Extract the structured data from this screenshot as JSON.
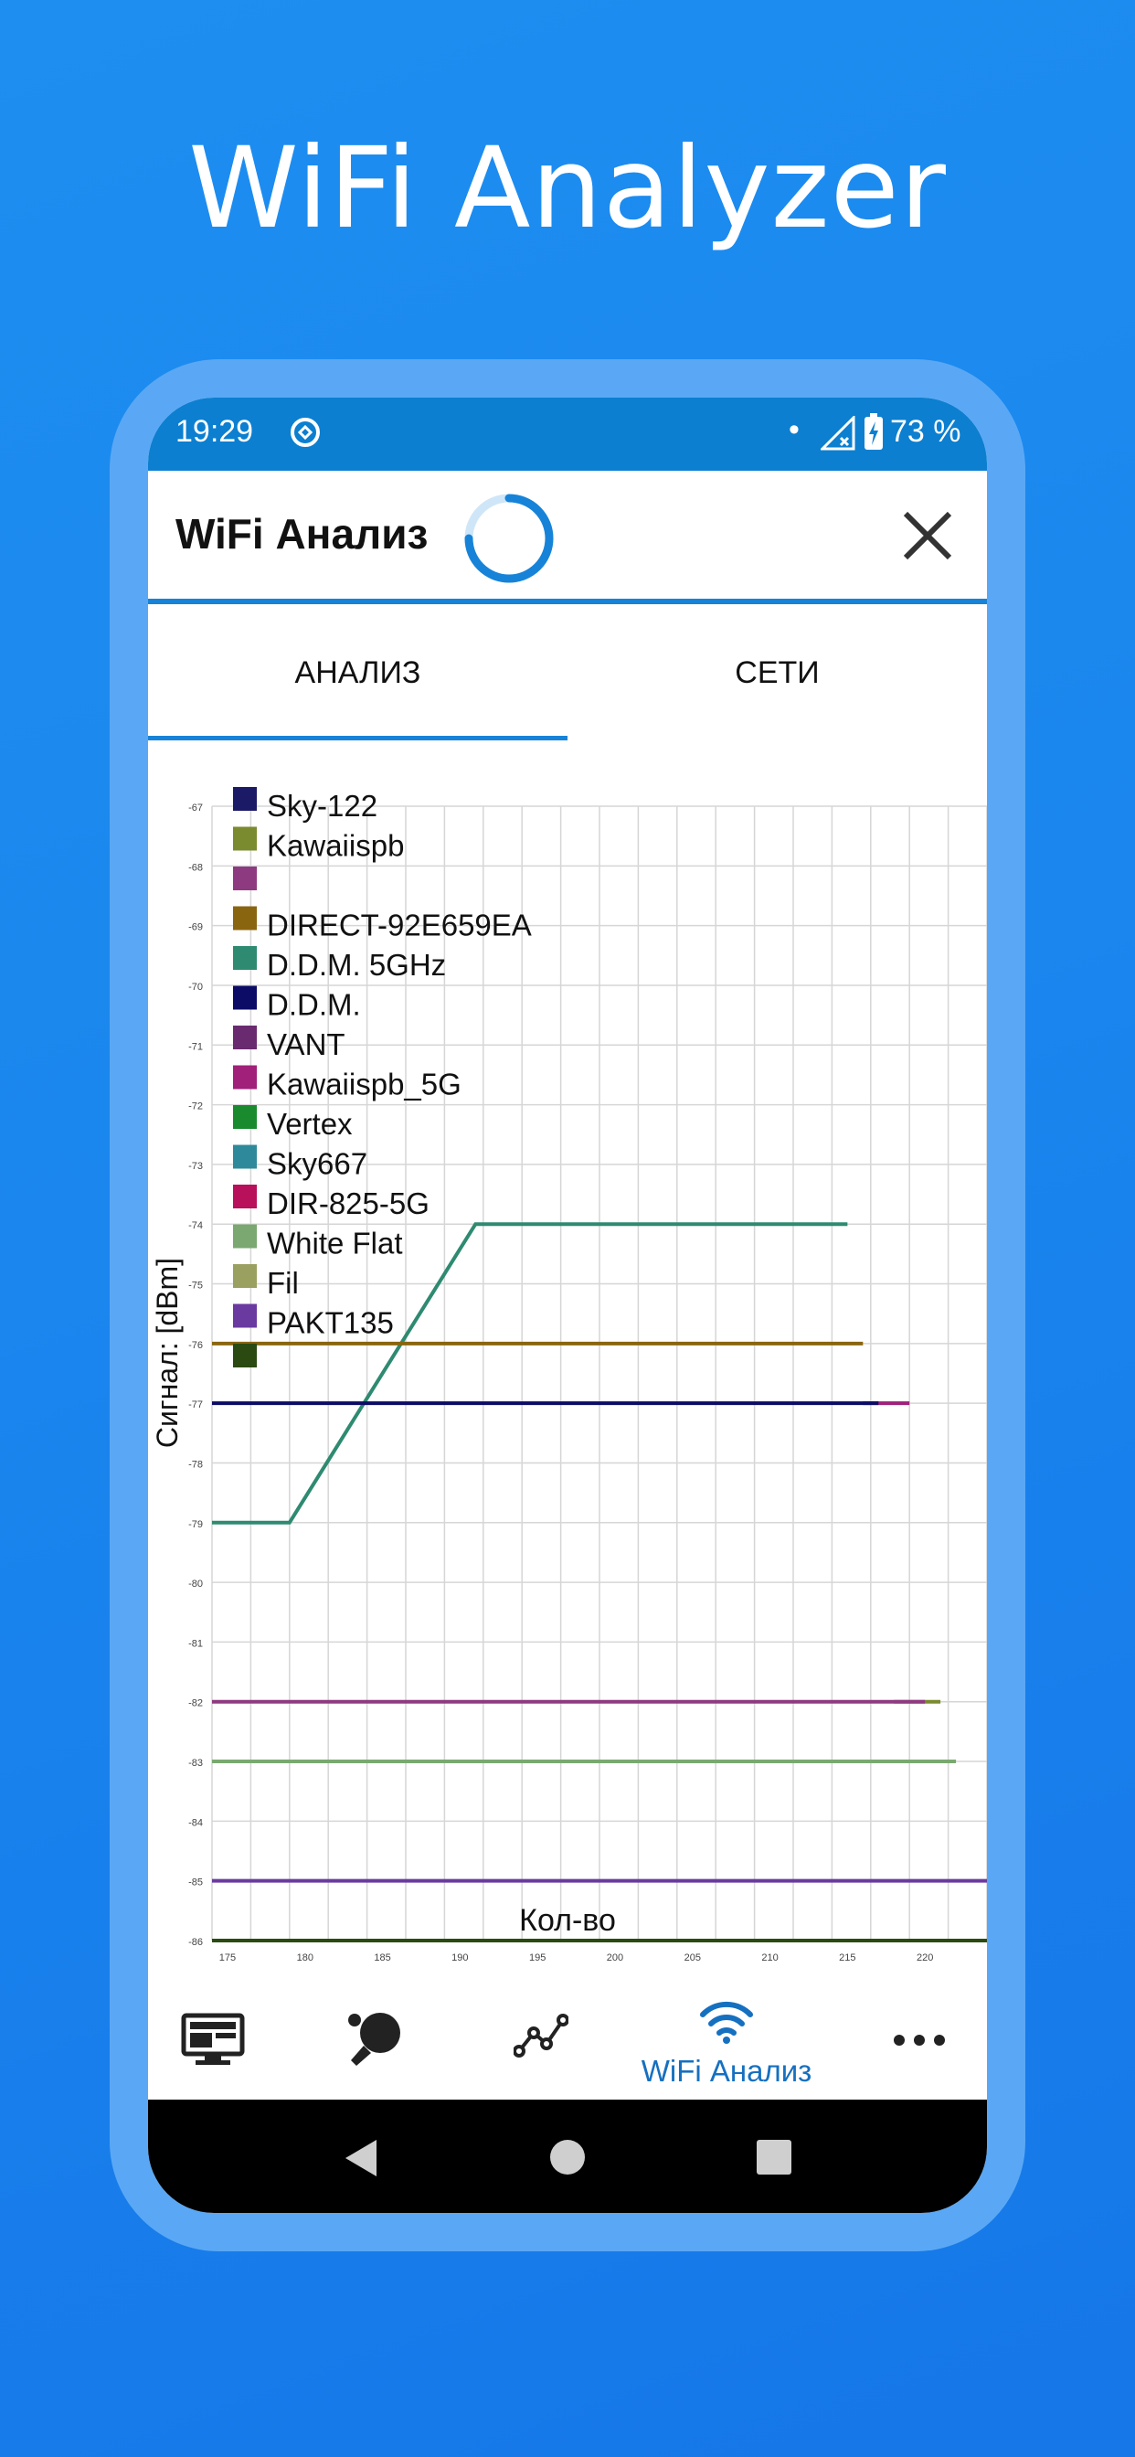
{
  "headline": "WiFi Analyzer",
  "status_bar": {
    "time": "19:29",
    "dot": "•",
    "battery_percent": "73 %",
    "sync_icon": "sync-icon",
    "signal_icon": "signal-off-icon",
    "battery_icon": "battery-charging-icon"
  },
  "app_bar": {
    "title": "WiFi Анализ",
    "spinner_icon": "loading-spinner-icon",
    "close_icon": "close-icon"
  },
  "tabs": [
    {
      "label": "АНАЛИЗ",
      "active": true
    },
    {
      "label": "СЕТИ",
      "active": false
    }
  ],
  "bottom_nav": [
    {
      "icon": "monitor-icon",
      "label": ""
    },
    {
      "icon": "ping-pong-icon",
      "label": ""
    },
    {
      "icon": "graph-icon",
      "label": ""
    },
    {
      "icon": "wifi-icon",
      "label": "WiFi Анализ",
      "active": true
    },
    {
      "icon": "more-icon",
      "label": ""
    }
  ],
  "system_nav": {
    "back": "back-icon",
    "home": "home-icon",
    "recents": "recents-icon"
  },
  "colors": {
    "background": "#1a86ee",
    "frame": "#5aa8f5",
    "accent": "#1683d8",
    "status_bar": "#0c7fd0"
  },
  "chart_data": {
    "type": "line",
    "xlabel": "Кол-во",
    "ylabel": "Сигнал: [dBm]",
    "xlim": [
      174,
      224
    ],
    "ylim": [
      -86,
      -67
    ],
    "x_ticks": [
      175,
      180,
      185,
      190,
      195,
      200,
      205,
      210,
      215,
      220
    ],
    "y_ticks": [
      -67,
      -68,
      -69,
      -70,
      -71,
      -72,
      -73,
      -74,
      -75,
      -76,
      -77,
      -78,
      -79,
      -80,
      -81,
      -82,
      -83,
      -84,
      -85,
      -86
    ],
    "grid": true,
    "legend_position": "top-left",
    "legend": [
      {
        "name": "Sky-122",
        "color": "#1a1a66"
      },
      {
        "name": "Kawaiispb",
        "color": "#7a8a2e"
      },
      {
        "name": "",
        "color": "#8e3a80"
      },
      {
        "name": "DIRECT-92E659EA",
        "color": "#8a6510"
      },
      {
        "name": "D.D.M. 5GHz",
        "color": "#2e8a70"
      },
      {
        "name": "D.D.M.",
        "color": "#0c0c66"
      },
      {
        "name": "VANT",
        "color": "#6a2a70"
      },
      {
        "name": "Kawaiispb_5G",
        "color": "#a0207a"
      },
      {
        "name": "Vertex",
        "color": "#1a8a2e"
      },
      {
        "name": "Sky667",
        "color": "#2e8a9a"
      },
      {
        "name": "DIR-825-5G",
        "color": "#b8105a"
      },
      {
        "name": "White Flat",
        "color": "#7aa870"
      },
      {
        "name": "Fil",
        "color": "#9aa060"
      },
      {
        "name": "PAKT135",
        "color": "#6a3aa0"
      },
      {
        "name": "",
        "color": "#2a4a12"
      }
    ],
    "series": [
      {
        "color": "#2e8a70",
        "x": [
          174,
          179,
          191,
          215
        ],
        "y": [
          -79,
          -79,
          -74,
          -74
        ]
      },
      {
        "color": "#8a6510",
        "x": [
          174,
          216
        ],
        "y": [
          -76,
          -76
        ]
      },
      {
        "color": "#a0207a",
        "x": [
          216,
          219
        ],
        "y": [
          -77,
          -77
        ]
      },
      {
        "color": "#0c0c66",
        "x": [
          174,
          217
        ],
        "y": [
          -77,
          -77
        ]
      },
      {
        "color": "#7a8a2e",
        "x": [
          218,
          221
        ],
        "y": [
          -82,
          -82
        ]
      },
      {
        "color": "#8e3a80",
        "x": [
          174,
          220
        ],
        "y": [
          -82,
          -82
        ]
      },
      {
        "color": "#7aa870",
        "x": [
          174,
          222
        ],
        "y": [
          -83,
          -83
        ]
      },
      {
        "color": "#6a3aa0",
        "x": [
          174,
          224
        ],
        "y": [
          -85,
          -85
        ]
      },
      {
        "color": "#2a4a12",
        "x": [
          174,
          224
        ],
        "y": [
          -86,
          -86
        ]
      }
    ]
  }
}
